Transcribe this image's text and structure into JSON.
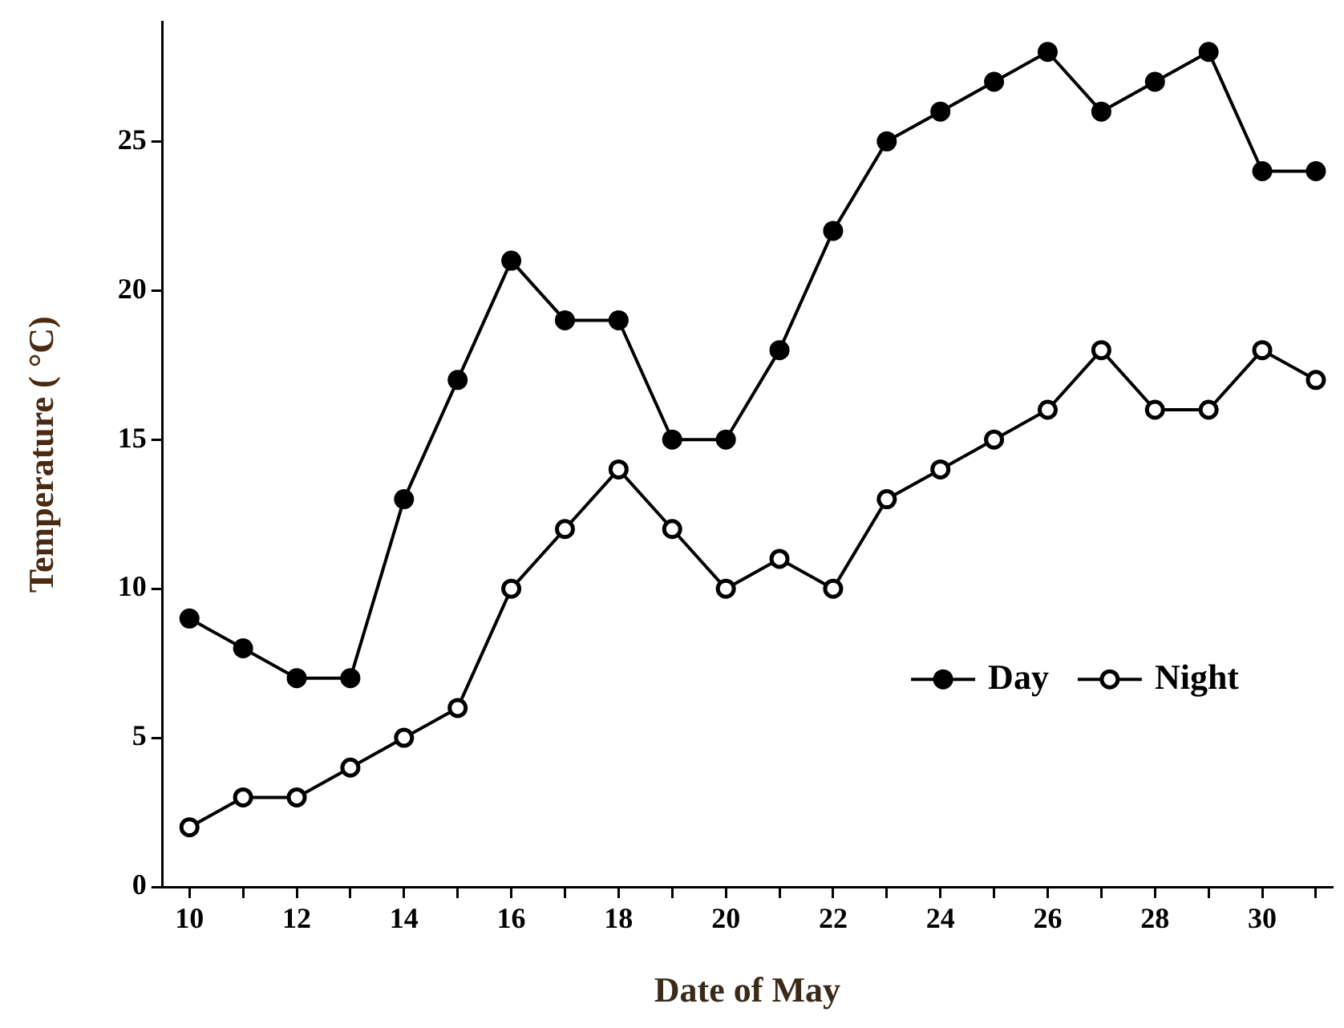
{
  "chart_data": {
    "type": "line",
    "xlabel": "Date of May",
    "ylabel": "Temperature ( °C)",
    "x": [
      10,
      11,
      12,
      13,
      14,
      15,
      16,
      17,
      18,
      19,
      20,
      21,
      22,
      23,
      24,
      25,
      26,
      27,
      28,
      29,
      30,
      31
    ],
    "series": [
      {
        "name": "Day",
        "color": "#000000",
        "values": [
          9,
          8,
          7,
          7,
          13,
          17,
          21,
          19,
          19,
          15,
          15,
          18,
          22,
          25,
          26,
          27,
          28,
          26,
          27,
          28,
          24,
          24
        ]
      },
      {
        "name": "Night",
        "color": "#000000",
        "colors": [
          "#ffffff",
          "#ffffff",
          "#ffffff",
          "#ffffff",
          "#ffffff",
          "#ffffff",
          "#ffffff",
          "#ffffff",
          "#ffffff",
          "#ffffff",
          "#ffffff",
          "#ffffff",
          "#ffffff",
          "#ffffff",
          "#ffffff",
          "#ffffff",
          "#ffffff",
          "#ffffff",
          "#ffffff",
          "#ffffff",
          "#ffffff",
          "#ffffff"
        ],
        "values": [
          2,
          3,
          3,
          4,
          5,
          6,
          10,
          12,
          14,
          12,
          10,
          11,
          10,
          13,
          14,
          15,
          16,
          18,
          16,
          16,
          18,
          17
        ]
      }
    ],
    "xlim": [
      9.5,
      31.3
    ],
    "xticks": [
      10,
      {
        "value": 11,
        "label": null
      },
      12,
      {
        "value": 13,
        "label": null
      },
      14,
      {
        "value": 15,
        "label": null
      },
      16,
      {
        "value": 17,
        "label": null
      },
      18,
      {
        "value": 19,
        "label": null
      },
      20,
      {
        "value": 21,
        "label": null
      },
      22,
      {
        "value": 23,
        "label": null
      },
      24,
      {
        "value": 25,
        "label": null
      },
      26,
      {
        "value": 27,
        "label": null
      },
      28,
      {
        "value": 29,
        "label": null
      },
      30,
      {
        "value": 31,
        "label": null
      }
    ],
    "ylim": [
      0,
      29
    ],
    "yticks": [
      0,
      5,
      10,
      15,
      20,
      25
    ],
    "grid": false,
    "legend": "right",
    "marker": "circle",
    "line_style": "solid"
  }
}
